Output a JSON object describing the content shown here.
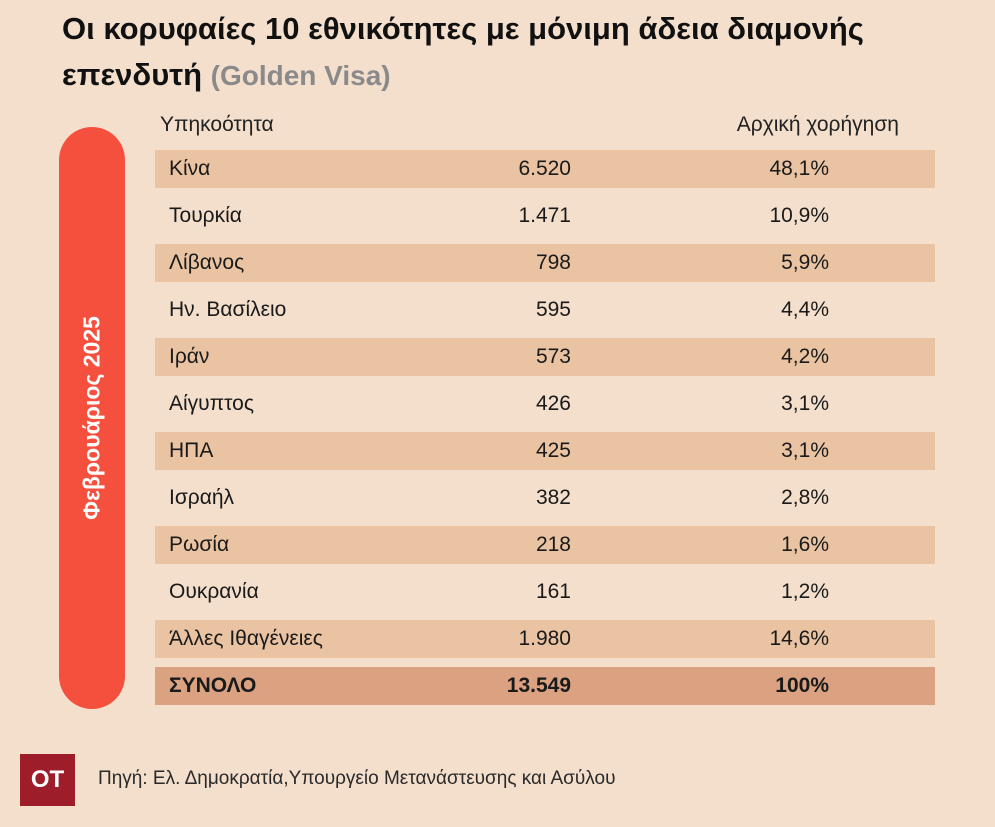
{
  "title": {
    "main": "Οι κορυφαίες 10 εθνικότητες με μόνιμη άδεια διαμονής επενδυτή",
    "sub": "(Golden Visa)"
  },
  "side_label": "Φεβρουάριος 2025",
  "chart_data": {
    "type": "table",
    "columns": [
      "Υπηκοότητα",
      "",
      "Αρχική χορήγηση"
    ],
    "rows": [
      {
        "country": "Κίνα",
        "count": "6.520",
        "share": "48,1%"
      },
      {
        "country": "Τουρκία",
        "count": "1.471",
        "share": "10,9%"
      },
      {
        "country": "Λίβανος",
        "count": "798",
        "share": "5,9%"
      },
      {
        "country": "Ην. Βασίλειο",
        "count": "595",
        "share": "4,4%"
      },
      {
        "country": "Ιράν",
        "count": "573",
        "share": "4,2%"
      },
      {
        "country": "Αίγυπτος",
        "count": "426",
        "share": "3,1%"
      },
      {
        "country": "ΗΠΑ",
        "count": "425",
        "share": "3,1%"
      },
      {
        "country": "Ισραήλ",
        "count": "382",
        "share": "2,8%"
      },
      {
        "country": "Ρωσία",
        "count": "218",
        "share": "1,6%"
      },
      {
        "country": "Ουκρανία",
        "count": "161",
        "share": "1,2%"
      },
      {
        "country": "Άλλες Ιθαγένειες",
        "count": "1.980",
        "share": "14,6%"
      }
    ],
    "total": {
      "country": "ΣΥΝΟΛΟ",
      "count": "13.549",
      "share": "100%"
    }
  },
  "footer": {
    "logo": "OT",
    "source": "Πηγή: Ελ. Δημοκρατία,Υπουργείο Μετανάστευσης και Ασύλου"
  },
  "colors": {
    "background": "#f3dfcc",
    "band": "#e9c3a2",
    "total_band": "#dba281",
    "accent": "#f5503d",
    "logo": "#9e1d2b"
  }
}
